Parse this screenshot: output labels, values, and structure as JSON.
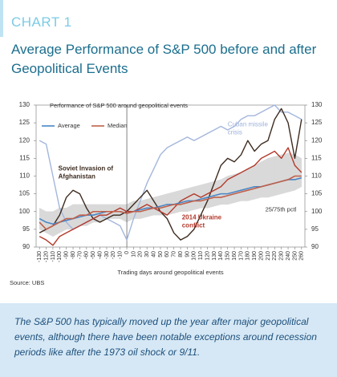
{
  "label": "CHART 1",
  "heading": "Average Performance of S&P 500 before and after Geopolitical Events",
  "source": "Source: UBS",
  "note": "The S&P 500 has typically moved up the year after major geopolitical events, although there have been notable exceptions around recession periods like after the 1973 oil shock or 9/11.",
  "chart_data": {
    "type": "line",
    "title": "Performance of S&P 500 around geopolitical events",
    "x_label": "Trading days around geopolitical events",
    "x": [
      -130,
      -120,
      -110,
      -100,
      -90,
      -80,
      -70,
      -60,
      -50,
      -40,
      -30,
      -20,
      -10,
      0,
      10,
      20,
      30,
      40,
      50,
      60,
      70,
      80,
      90,
      100,
      110,
      120,
      130,
      140,
      150,
      160,
      170,
      180,
      190,
      200,
      210,
      220,
      230,
      240,
      250,
      260
    ],
    "xlim": [
      -135,
      265
    ],
    "xticks": [
      -130,
      -120,
      -110,
      -100,
      -90,
      -80,
      -70,
      -60,
      -50,
      -40,
      -30,
      -20,
      -10,
      0,
      10,
      20,
      30,
      40,
      50,
      60,
      70,
      80,
      90,
      100,
      110,
      120,
      130,
      140,
      150,
      160,
      170,
      180,
      190,
      200,
      210,
      220,
      230,
      240,
      250,
      260
    ],
    "ylim": [
      90,
      130
    ],
    "yticks": [
      90,
      95,
      100,
      105,
      110,
      115,
      120,
      125,
      130
    ],
    "reference_x": 0,
    "band": {
      "name": "25/75th pctl",
      "color": "#d9d9d9",
      "lower": [
        95,
        94,
        93,
        94,
        95,
        95,
        96,
        96,
        97,
        97,
        98,
        98,
        98,
        97,
        98,
        98,
        98.5,
        99,
        99,
        99,
        99.5,
        100,
        100,
        100.5,
        101,
        101,
        101.5,
        102,
        102,
        102.5,
        103,
        103,
        103.5,
        104,
        104,
        104.5,
        105,
        105.5,
        106,
        107
      ],
      "upper": [
        101,
        100,
        100,
        101,
        101,
        102,
        102,
        102,
        102,
        102,
        102,
        102,
        102,
        102,
        103,
        103,
        103.5,
        104,
        104.5,
        105,
        105.5,
        106,
        106.5,
        107,
        107.5,
        108,
        108.5,
        109,
        110,
        110.5,
        111,
        112,
        113,
        114,
        115,
        115.5,
        116,
        116.5,
        116,
        115
      ]
    },
    "series": [
      {
        "name": "Average",
        "color": "#4a86c5",
        "values": [
          98,
          97,
          96.5,
          97,
          97.5,
          98,
          98.5,
          99,
          99,
          99.5,
          100,
          100,
          100,
          99.5,
          100,
          100.5,
          101,
          101,
          101.5,
          102,
          102,
          102.5,
          103,
          103,
          103.5,
          104,
          104.5,
          105,
          105,
          105.5,
          106,
          106.5,
          107,
          107,
          107.5,
          108,
          108.5,
          109,
          109,
          109.5
        ]
      },
      {
        "name": "Median",
        "color": "#c0604a",
        "values": [
          97,
          95,
          96,
          97,
          98,
          98,
          99,
          99,
          100,
          100,
          100,
          100,
          100,
          99.5,
          100,
          100,
          100.5,
          101,
          101,
          101.5,
          102,
          102,
          102.5,
          103,
          103,
          103.5,
          104,
          104,
          104.5,
          105,
          105.5,
          106,
          106.5,
          107,
          107.5,
          108,
          108.5,
          109,
          110,
          110
        ]
      }
    ],
    "event_series": [
      {
        "name": "Cuban missile crisis",
        "color": "#a3b6dc",
        "values": [
          120,
          119,
          110,
          101,
          97,
          95,
          96,
          97,
          98,
          99,
          98,
          97,
          96,
          92,
          98,
          103,
          108,
          112,
          116,
          118,
          119,
          120,
          121,
          120,
          121,
          122,
          123,
          124,
          123,
          124,
          126,
          127,
          127,
          128,
          129,
          130,
          128,
          128,
          127,
          126
        ]
      },
      {
        "name": "Soviet Invasion of Afghanistan",
        "color": "#3d2b1f",
        "values": [
          94,
          95,
          96,
          99,
          104,
          106,
          105,
          101,
          98,
          97,
          98,
          99,
          99,
          100,
          102,
          104,
          106,
          103,
          100,
          98,
          94,
          92,
          93,
          95,
          99,
          103,
          108,
          113,
          115,
          114,
          116,
          120,
          117,
          119,
          120,
          126,
          129,
          125,
          115,
          126
        ]
      },
      {
        "name": "2014 Ukraine conflict",
        "color": "#b3392b",
        "values": [
          93,
          92,
          90.5,
          93,
          94,
          95,
          96,
          97,
          98,
          99,
          99,
          100,
          101,
          100,
          100,
          101,
          102,
          101,
          100,
          99,
          101,
          103,
          104,
          105,
          104,
          105,
          106,
          107,
          109,
          110,
          111,
          112,
          113,
          115,
          116,
          117,
          115,
          118,
          113,
          111
        ]
      }
    ]
  }
}
